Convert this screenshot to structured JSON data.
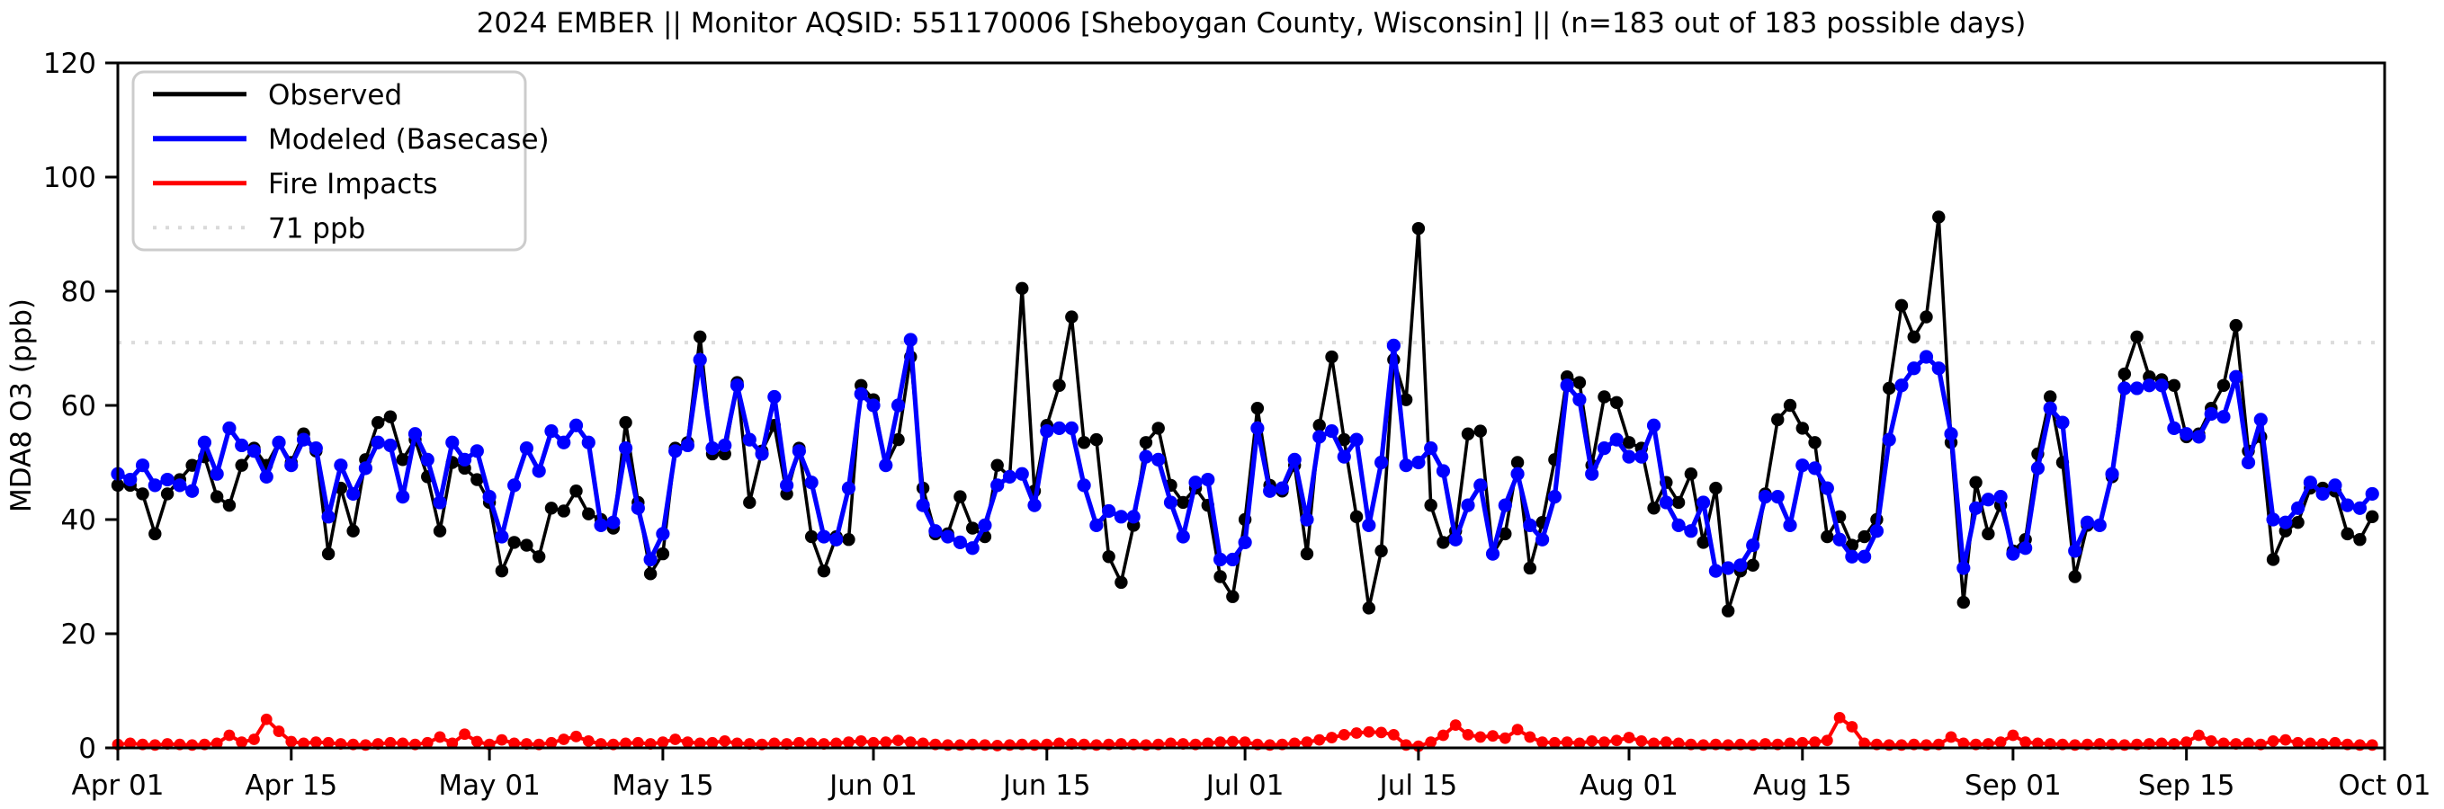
{
  "title": "2024 EMBER || Monitor AQSID: 551170006 [Sheboygan County, Wisconsin] || (n=183 out of 183 possible days)",
  "y_axis": {
    "label": "MDA8 O3 (ppb)",
    "min": 0,
    "max": 120,
    "ticks": [
      0,
      20,
      40,
      60,
      80,
      100,
      120
    ]
  },
  "x_axis": {
    "ticks": [
      {
        "day": 0,
        "label": "Apr 01"
      },
      {
        "day": 14,
        "label": "Apr 15"
      },
      {
        "day": 30,
        "label": "May 01"
      },
      {
        "day": 44,
        "label": "May 15"
      },
      {
        "day": 61,
        "label": "Jun 01"
      },
      {
        "day": 75,
        "label": "Jun 15"
      },
      {
        "day": 91,
        "label": "Jul 01"
      },
      {
        "day": 105,
        "label": "Jul 15"
      },
      {
        "day": 122,
        "label": "Aug 01"
      },
      {
        "day": 136,
        "label": "Aug 15"
      },
      {
        "day": 153,
        "label": "Sep 01"
      },
      {
        "day": 167,
        "label": "Sep 15"
      },
      {
        "day": 183,
        "label": "Oct 01"
      }
    ]
  },
  "legend": [
    {
      "label": "Observed",
      "color": "#000000",
      "dash": "none",
      "width": 5
    },
    {
      "label": "Modeled (Basecase)",
      "color": "#0000ff",
      "dash": "none",
      "width": 6
    },
    {
      "label": "Fire Impacts",
      "color": "#ff0000",
      "dash": "none",
      "width": 5
    },
    {
      "label": "71 ppb",
      "color": "#d9d9d9",
      "dash": "4 10",
      "width": 4
    }
  ],
  "threshold": {
    "value": 71,
    "label": "71 ppb",
    "color": "#dcdcdc"
  },
  "chart_data": {
    "type": "line",
    "title": "2024 EMBER || Monitor AQSID: 551170006 [Sheboygan County, Wisconsin] || (n=183 out of 183 possible days)",
    "xlabel": "",
    "ylabel": "MDA8 O3 (ppb)",
    "ylim": [
      0,
      120
    ],
    "n_days": 183,
    "x_start": "Apr 01",
    "x_end": "Sep 30",
    "grid": false,
    "legend_position": "upper-left",
    "threshold_value": 71,
    "series": [
      {
        "name": "Observed",
        "color": "#000000",
        "marker": "circle",
        "values": [
          46,
          46,
          44.5,
          37.5,
          44.5,
          47,
          49.5,
          51,
          44,
          42.5,
          49.5,
          52.5,
          49.5,
          53.5,
          50,
          55,
          52,
          34,
          45.5,
          38,
          50.5,
          57,
          58,
          50.5,
          54,
          47.5,
          38,
          50,
          49,
          47,
          43,
          31,
          36,
          35.5,
          33.5,
          42,
          41.5,
          45,
          41,
          40,
          38.5,
          57,
          43,
          30.5,
          34,
          52.5,
          53.5,
          72,
          51.5,
          51.5,
          64,
          43,
          52,
          56.5,
          44.5,
          52.5,
          37,
          31,
          37,
          36.5,
          63.5,
          61,
          49.5,
          54,
          68.5,
          45.5,
          37.5,
          37.5,
          44,
          38.5,
          37,
          49.5,
          47.5,
          80.5,
          45,
          56.5,
          63.5,
          75.5,
          53.5,
          54,
          33.5,
          29,
          39,
          53.5,
          56,
          46,
          43,
          45.5,
          42.5,
          30,
          26.5,
          40,
          59.5,
          46,
          45,
          49.5,
          34,
          56.5,
          68.5,
          54,
          40.5,
          24.5,
          34.5,
          68,
          61,
          91,
          42.5,
          36,
          38,
          55,
          55.5,
          34,
          37.5,
          50,
          31.5,
          39.5,
          50.5,
          65,
          64,
          49.5,
          61.5,
          60.5,
          53.5,
          52.5,
          42,
          46.5,
          43,
          48,
          36,
          45.5,
          24,
          31,
          32,
          44.5,
          57.5,
          60,
          56,
          53.5,
          37,
          40.5,
          35.5,
          37,
          40,
          63,
          77.5,
          72,
          75.5,
          93,
          53.5,
          25.5,
          46.5,
          37.5,
          42.5,
          34.5,
          36.5,
          51.5,
          61.5,
          50,
          30,
          39,
          39,
          47.5,
          65.5,
          72,
          65,
          64.5,
          63.5,
          54.5,
          55,
          59.5,
          63.5,
          74,
          52,
          54.5,
          33,
          38,
          39.5,
          45.5,
          45.5,
          45,
          37.5,
          36.5,
          40.5
        ]
      },
      {
        "name": "Modeled (Basecase)",
        "color": "#0000ff",
        "marker": "circle",
        "values": [
          48,
          47,
          49.5,
          46,
          47,
          46,
          45,
          53.5,
          48,
          56,
          53,
          52,
          47.5,
          53.5,
          49.5,
          54,
          52.5,
          40.5,
          49.5,
          44.5,
          49,
          53.5,
          53,
          44,
          55,
          50.5,
          43,
          53.5,
          50.5,
          52,
          44,
          37,
          46,
          52.5,
          48.5,
          55.5,
          53.5,
          56.5,
          53.5,
          39,
          39.5,
          52.5,
          42,
          33,
          37.5,
          52,
          53,
          68,
          52.5,
          53,
          63.5,
          54,
          51.5,
          61.5,
          46,
          52,
          46.5,
          37,
          36.5,
          45.5,
          62,
          60,
          49.5,
          60,
          71.5,
          42.5,
          38,
          37,
          36,
          35,
          39,
          46,
          47.5,
          48,
          42.5,
          55.5,
          56,
          56,
          46,
          39,
          41.5,
          40.5,
          40.5,
          51,
          50.5,
          43,
          37,
          46.5,
          47,
          33,
          33,
          36,
          56,
          45,
          45.5,
          50.5,
          40,
          54.5,
          55.5,
          51,
          54,
          39,
          50,
          70.5,
          49.5,
          50,
          52.5,
          48.5,
          36.5,
          42.5,
          46,
          34,
          42.5,
          48,
          39,
          36.5,
          44,
          63.5,
          61,
          48,
          52.5,
          54,
          51,
          51,
          56.5,
          43,
          39,
          38,
          43,
          31,
          31.5,
          32,
          35.5,
          44,
          44,
          39,
          49.5,
          49,
          45.5,
          36.5,
          33.5,
          33.5,
          38,
          54,
          63.5,
          66.5,
          68.5,
          66.5,
          55,
          31.5,
          42,
          43.5,
          44,
          34,
          35,
          49,
          59.5,
          57,
          34.5,
          39.5,
          39,
          48,
          63,
          63,
          63.5,
          63.5,
          56,
          55,
          54.5,
          58.5,
          58,
          65,
          50,
          57.5,
          40,
          39.5,
          42,
          46.5,
          44.5,
          46,
          42.5,
          42,
          44.5
        ]
      },
      {
        "name": "Fire Impacts",
        "color": "#ff0000",
        "marker": "circle",
        "values": [
          0.6,
          0.8,
          0.6,
          0.5,
          0.7,
          0.6,
          0.5,
          0.6,
          0.8,
          2.2,
          1.0,
          1.5,
          5.0,
          2.9,
          1.1,
          0.8,
          1.0,
          0.9,
          0.7,
          0.6,
          0.5,
          0.7,
          0.9,
          0.8,
          0.6,
          0.9,
          1.9,
          0.8,
          2.4,
          1.1,
          0.6,
          1.4,
          0.8,
          0.7,
          0.6,
          0.9,
          1.5,
          2.0,
          1.2,
          0.7,
          0.6,
          0.8,
          0.9,
          0.7,
          1.0,
          1.5,
          1.0,
          0.8,
          0.9,
          1.2,
          0.8,
          0.7,
          0.6,
          0.8,
          0.7,
          0.9,
          0.8,
          0.7,
          0.8,
          1.0,
          1.2,
          0.9,
          1.0,
          1.3,
          1.0,
          0.8,
          0.6,
          0.5,
          0.5,
          0.6,
          0.5,
          0.4,
          0.5,
          0.6,
          0.5,
          0.6,
          0.8,
          0.7,
          0.6,
          0.5,
          0.6,
          0.7,
          0.6,
          0.5,
          0.6,
          0.8,
          0.7,
          0.6,
          0.8,
          1.0,
          1.1,
          1.0,
          0.6,
          0.5,
          0.6,
          0.8,
          1.0,
          1.4,
          1.8,
          2.3,
          2.6,
          2.8,
          2.7,
          2.3,
          0.5,
          0.3,
          1.0,
          2.2,
          4.0,
          2.3,
          1.9,
          2.1,
          1.7,
          3.2,
          1.9,
          1.0,
          0.9,
          1.0,
          0.8,
          1.2,
          1.0,
          1.3,
          1.8,
          1.2,
          0.8,
          1.0,
          0.8,
          0.6,
          0.5,
          0.6,
          0.5,
          0.6,
          0.5,
          0.7,
          0.6,
          0.8,
          0.9,
          1.0,
          1.3,
          5.3,
          3.7,
          0.8,
          0.6,
          0.5,
          0.5,
          0.6,
          0.5,
          0.6,
          1.9,
          0.8,
          0.6,
          0.7,
          1.0,
          2.2,
          1.0,
          0.8,
          0.7,
          0.6,
          0.5,
          0.6,
          0.7,
          0.6,
          0.5,
          0.6,
          0.7,
          0.8,
          0.7,
          1.0,
          2.2,
          1.2,
          0.8,
          0.7,
          0.8,
          0.6,
          1.2,
          1.4,
          0.9,
          0.8,
          0.7,
          0.9,
          0.6,
          0.5,
          0.5
        ]
      }
    ]
  }
}
